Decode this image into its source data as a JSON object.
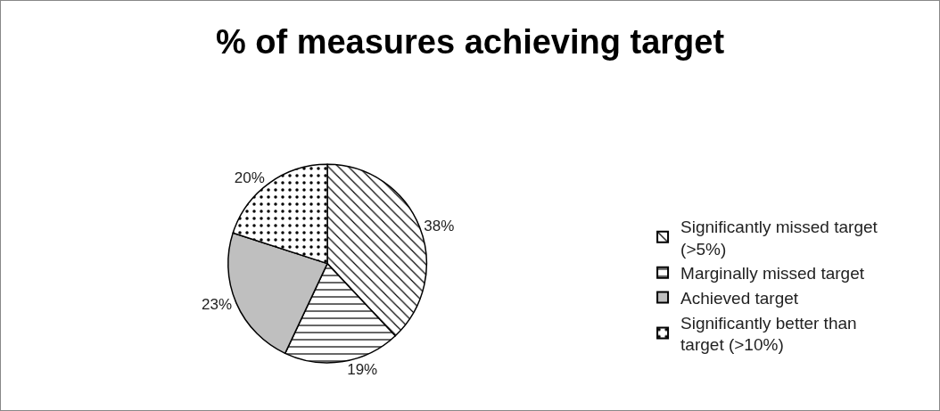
{
  "chart_data": {
    "type": "pie",
    "title": "% of measures achieving target",
    "categories": [
      "Significantly missed target (>5%)",
      "Marginally missed target",
      "Achieved target",
      "Significantly better than target (>10%)"
    ],
    "values": [
      38,
      19,
      23,
      20
    ],
    "colors": [
      "#000000",
      "#000000",
      "#bfbfbf",
      "#000000"
    ],
    "value_labels": [
      "38%",
      "19%",
      "23%",
      "20%"
    ],
    "legend": "right"
  }
}
